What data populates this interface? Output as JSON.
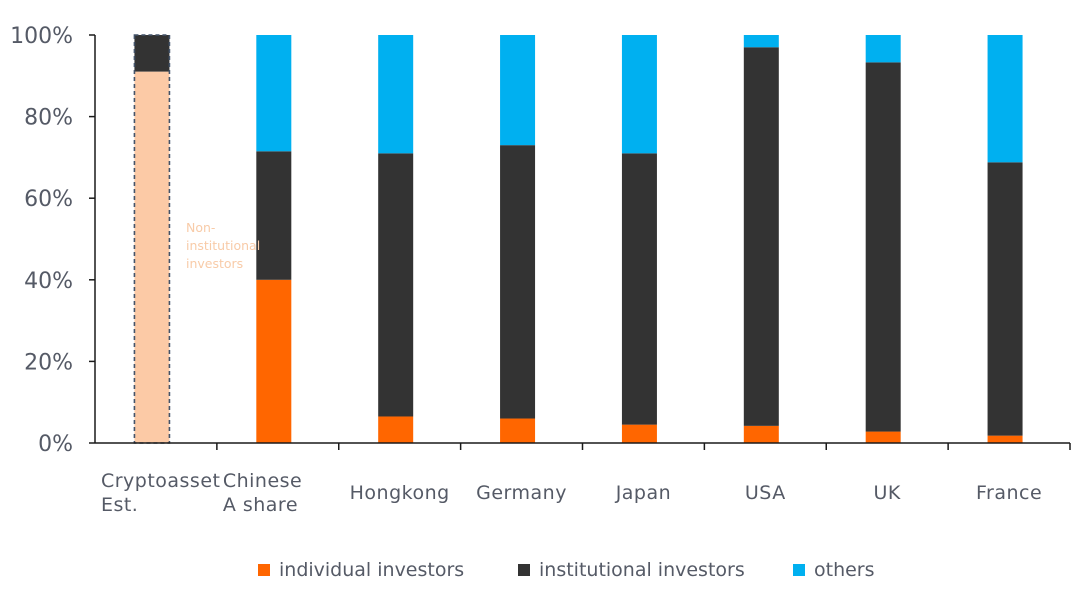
{
  "chart_data": {
    "type": "bar",
    "stacked": true,
    "categories": [
      [
        "Cryptoasset",
        "Est."
      ],
      [
        "Chinese",
        "A share"
      ],
      [
        "Hongkong"
      ],
      [
        "Germany"
      ],
      [
        "Japan"
      ],
      [
        "USA"
      ],
      [
        "UK"
      ],
      [
        "France"
      ]
    ],
    "series": [
      {
        "name": "individual investors",
        "color": "#ff6600",
        "values": [
          null,
          40,
          6.5,
          6,
          4.5,
          4.2,
          2.8,
          1.8
        ]
      },
      {
        "name": "institutional investors",
        "color": "#333333",
        "values": [
          9,
          31.5,
          64.5,
          67,
          66.5,
          92.8,
          90.5,
          67
        ]
      },
      {
        "name": "others",
        "color": "#00b0f0",
        "values": [
          null,
          28.5,
          29,
          27,
          29,
          3,
          6.7,
          31.2
        ]
      }
    ],
    "highlight": {
      "category_index": 0,
      "value": 91,
      "color": "#fccaa6",
      "border_color": "#44546a",
      "label": "Non-\ninstitutional\ninvestors",
      "label_color": "#f8cba8"
    },
    "ylim": [
      0,
      100
    ],
    "yticks": [
      "0%",
      "20%",
      "40%",
      "60%",
      "80%",
      "100%"
    ],
    "ytick_values": [
      0,
      20,
      40,
      60,
      80,
      100
    ],
    "grid": false,
    "legend": "bottom"
  }
}
